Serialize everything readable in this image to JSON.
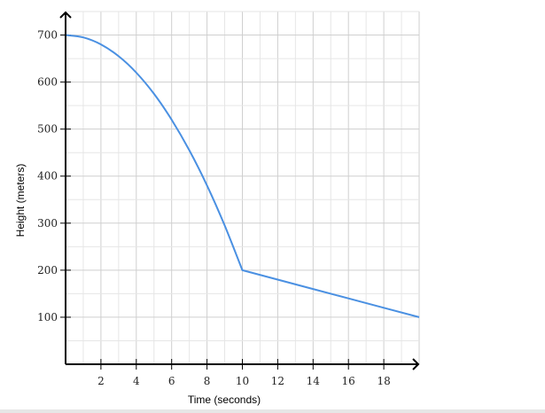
{
  "chart_data": {
    "type": "line",
    "title": "",
    "xlabel": "Time (seconds)",
    "ylabel": "Height (meters)",
    "xlim": [
      0,
      20
    ],
    "ylim": [
      0,
      750
    ],
    "xticks": [
      2,
      4,
      6,
      8,
      10,
      12,
      14,
      16,
      18
    ],
    "yticks": [
      100,
      200,
      300,
      400,
      500,
      600,
      700
    ],
    "grid": true,
    "series": [
      {
        "color": "#4a90e2",
        "x": [
          0,
          1,
          2,
          3,
          4,
          5,
          6,
          7,
          8,
          9,
          10,
          12,
          14,
          16,
          18,
          20
        ],
        "y": [
          700,
          695,
          680,
          655,
          620,
          575,
          520,
          455,
          380,
          295,
          200,
          180,
          160,
          140,
          120,
          100
        ]
      }
    ]
  }
}
